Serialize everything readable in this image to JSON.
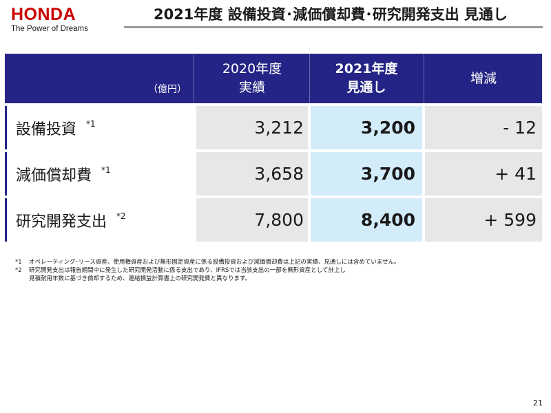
{
  "logo": {
    "wordmark": "HONDA",
    "tagline": "The Power of Dreams"
  },
  "title": "2021年度 設備投資･減価償却費･研究開発支出 見通し",
  "table": {
    "unit": "（億円）",
    "headers": {
      "col2020_line1": "2020年度",
      "col2020_line2": "実績",
      "col2021_line1": "2021年度",
      "col2021_line2": "見通し",
      "diff": "増減"
    },
    "rows": [
      {
        "label": "設備投資",
        "note": "*1",
        "actual_2020": "3,212",
        "forecast_2021": "3,200",
        "change": "- 12"
      },
      {
        "label": "減価償却費",
        "note": "*1",
        "actual_2020": "3,658",
        "forecast_2021": "3,700",
        "change": "+ 41"
      },
      {
        "label": "研究開発支出",
        "note": "*2",
        "actual_2020": "7,800",
        "forecast_2021": "8,400",
        "change": "+ 599"
      }
    ]
  },
  "footnotes": {
    "n1_mark": "*1",
    "n1_text": "オペレーティング･リース資産、使用権資産および無形固定資産に係る設備投資および減価償却費は上記の実績、見通しには含めていません。",
    "n2_mark": "*2",
    "n2_text1": "研究開発支出は報告期間中に発生した研究開発活動に係る支出であり、IFRSでは当該支出の一部を無形資産として計上し",
    "n2_text2": "見積耐用年数に基づき償却するため、連結損益計算書上の研究開発費と異なります。"
  },
  "page_number": "21",
  "colors": {
    "brand_red": "#cc0000",
    "header_navy": "#242486",
    "row_grey": "#e7e7e7",
    "highlight_blue": "#d3ecfa",
    "title_rule": "#9a9a9a",
    "row_marker": "#242486"
  }
}
